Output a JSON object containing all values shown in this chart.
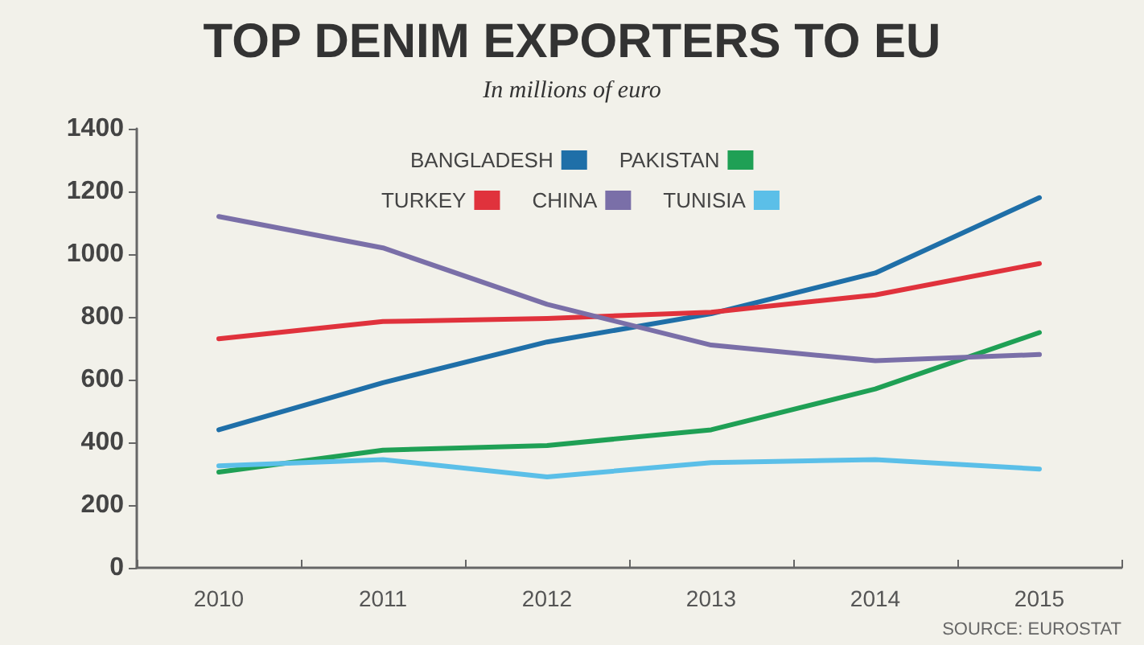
{
  "chart_data": {
    "type": "line",
    "title": "TOP DENIM EXPORTERS TO EU",
    "subtitle": "In millions of euro",
    "categories": [
      "2010",
      "2011",
      "2012",
      "2013",
      "2014",
      "2015"
    ],
    "series": [
      {
        "name": "BANGLADESH",
        "color": "#1f6fa8",
        "values": [
          440,
          590,
          720,
          810,
          940,
          1180
        ]
      },
      {
        "name": "PAKISTAN",
        "color": "#1fa055",
        "values": [
          305,
          375,
          390,
          440,
          570,
          750
        ]
      },
      {
        "name": "TURKEY",
        "color": "#e0323c",
        "values": [
          730,
          785,
          795,
          815,
          870,
          970
        ]
      },
      {
        "name": "CHINA",
        "color": "#7a6fa8",
        "values": [
          1120,
          1020,
          840,
          710,
          660,
          680
        ]
      },
      {
        "name": "TUNISIA",
        "color": "#5bbfe8",
        "values": [
          325,
          345,
          290,
          335,
          345,
          315
        ]
      }
    ],
    "ylim": [
      0,
      1400
    ],
    "yticks": [
      0,
      200,
      400,
      600,
      800,
      1000,
      1200,
      1400
    ],
    "grid": false,
    "legend": "top",
    "marker": "none",
    "line_style": "solid",
    "annotations": [
      "SOURCE: EUROSTAT"
    ]
  }
}
